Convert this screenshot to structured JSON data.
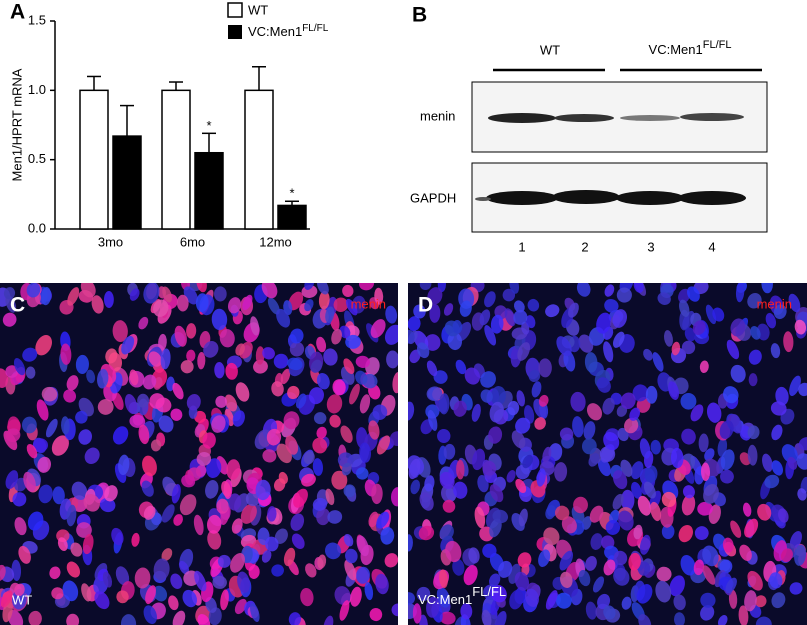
{
  "chart_data": {
    "type": "bar",
    "panel_label": "A",
    "y_label": "Men1/HPRT mRNA",
    "categories": [
      "3mo",
      "6mo",
      "12mo"
    ],
    "series": [
      {
        "name": "WT",
        "color": "#ffffff",
        "values": [
          1.0,
          1.0,
          1.0
        ],
        "errors": [
          0.1,
          0.06,
          0.17
        ]
      },
      {
        "name": "VC:Men1",
        "name_superscript": "FL/FL",
        "color": "#000000",
        "values": [
          0.67,
          0.55,
          0.17
        ],
        "errors": [
          0.22,
          0.14,
          0.03
        ],
        "annotations": [
          null,
          "*",
          "*"
        ]
      }
    ],
    "ylim": [
      0,
      1.5
    ],
    "yticks": [
      {
        "value": 0,
        "label": "0.0"
      },
      {
        "value": 0.5,
        "label": "0.5"
      },
      {
        "value": 1,
        "label": "1.0"
      },
      {
        "value": 1.5,
        "label": "1.5"
      }
    ]
  },
  "blot": {
    "panel_label": "B",
    "groups": [
      {
        "label": "WT"
      },
      {
        "label": "VC:Men1",
        "superscript": "FL/FL"
      }
    ],
    "rows": [
      "menin",
      "GAPDH"
    ],
    "lanes": [
      "1",
      "2",
      "3",
      "4"
    ]
  },
  "images": [
    {
      "panel_label": "C",
      "stain": "menin",
      "genotype": "WT"
    },
    {
      "panel_label": "D",
      "stain": "menin",
      "genotype": "VC:Men1",
      "superscript": "FL/FL"
    }
  ]
}
